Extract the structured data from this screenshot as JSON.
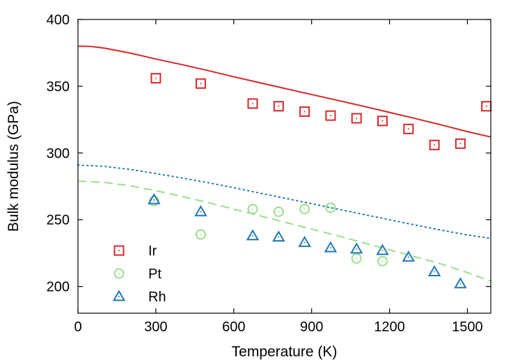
{
  "chart_data": {
    "type": "scatter",
    "xlabel": "Temperature (K)",
    "ylabel": "Bulk modulus (GPa)",
    "xlim": [
      0,
      1590
    ],
    "ylim": [
      180,
      400
    ],
    "xticks": [
      0,
      300,
      600,
      900,
      1200,
      1500
    ],
    "yticks": [
      200,
      250,
      300,
      350,
      400
    ],
    "grid": false,
    "legend_position": "bottom-left",
    "series": [
      {
        "name": "Ir",
        "marker": "square",
        "color": "#d62728",
        "points": [
          [
            300,
            356
          ],
          [
            473,
            352
          ],
          [
            673,
            337
          ],
          [
            773,
            335
          ],
          [
            873,
            331
          ],
          [
            973,
            328
          ],
          [
            1073,
            326
          ],
          [
            1173,
            324
          ],
          [
            1273,
            318
          ],
          [
            1373,
            306
          ],
          [
            1473,
            307
          ],
          [
            1573,
            335
          ]
        ]
      },
      {
        "name": "Pt",
        "marker": "circle",
        "color": "#98df8a",
        "points": [
          [
            293,
            264
          ],
          [
            473,
            239
          ],
          [
            673,
            258
          ],
          [
            773,
            256
          ],
          [
            873,
            258
          ],
          [
            973,
            259
          ],
          [
            1073,
            221
          ],
          [
            1173,
            219
          ]
        ]
      },
      {
        "name": "Rh",
        "marker": "triangle",
        "color": "#1f77b4",
        "points": [
          [
            293,
            265
          ],
          [
            473,
            256
          ],
          [
            673,
            238
          ],
          [
            773,
            237
          ],
          [
            873,
            233
          ],
          [
            973,
            229
          ],
          [
            1073,
            228
          ],
          [
            1173,
            227
          ],
          [
            1273,
            222
          ],
          [
            1373,
            211
          ],
          [
            1473,
            202
          ]
        ]
      }
    ],
    "curves": [
      {
        "style": "solid",
        "color": "#d62728",
        "points": [
          [
            0,
            380
          ],
          [
            50,
            379.8
          ],
          [
            100,
            378.6
          ],
          [
            200,
            374.9
          ],
          [
            300,
            370.4
          ],
          [
            400,
            366.2
          ],
          [
            500,
            361.8
          ],
          [
            600,
            357.1
          ],
          [
            700,
            352.6
          ],
          [
            800,
            348.2
          ],
          [
            900,
            343.8
          ],
          [
            1000,
            339.4
          ],
          [
            1100,
            335
          ],
          [
            1200,
            330.4
          ],
          [
            1300,
            325.8
          ],
          [
            1400,
            321
          ],
          [
            1500,
            316
          ],
          [
            1590,
            312
          ]
        ]
      },
      {
        "style": "dotted",
        "color": "#1f77b4",
        "points": [
          [
            0,
            291
          ],
          [
            100,
            290
          ],
          [
            200,
            287.7
          ],
          [
            300,
            284.6
          ],
          [
            400,
            281.3
          ],
          [
            500,
            277.8
          ],
          [
            600,
            274
          ],
          [
            700,
            270
          ],
          [
            800,
            266
          ],
          [
            900,
            262
          ],
          [
            1000,
            258
          ],
          [
            1100,
            254
          ],
          [
            1200,
            250
          ],
          [
            1300,
            246
          ],
          [
            1400,
            242.2
          ],
          [
            1500,
            238.6
          ],
          [
            1590,
            236
          ]
        ]
      },
      {
        "style": "dashed",
        "color": "#98df8a",
        "points": [
          [
            0,
            279
          ],
          [
            100,
            278
          ],
          [
            200,
            275.5
          ],
          [
            300,
            271.8
          ],
          [
            400,
            267.5
          ],
          [
            500,
            262.9
          ],
          [
            600,
            258
          ],
          [
            700,
            253
          ],
          [
            800,
            248
          ],
          [
            900,
            243
          ],
          [
            1000,
            238
          ],
          [
            1100,
            232.7
          ],
          [
            1200,
            227.5
          ],
          [
            1300,
            222.2
          ],
          [
            1400,
            216.8
          ],
          [
            1500,
            210.4
          ],
          [
            1590,
            204
          ]
        ]
      }
    ]
  }
}
